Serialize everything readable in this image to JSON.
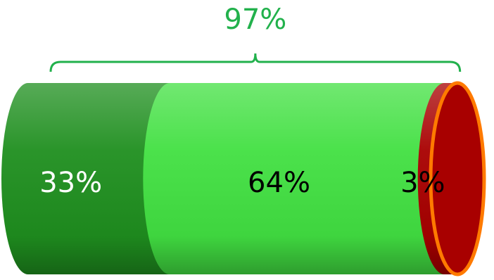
{
  "chart_data": {
    "type": "bar",
    "values": [
      33,
      64,
      3
    ],
    "value_labels": [
      "33%",
      "64%",
      "3%"
    ],
    "colors": [
      "#1f8f1f",
      "#42e042",
      "#a80000"
    ],
    "label_colors": [
      "#ffffff",
      "#000000",
      "#000000"
    ],
    "xlim": [
      0,
      100
    ],
    "annotation": {
      "value": 97,
      "label": "97%",
      "color": "#22b14c"
    }
  }
}
